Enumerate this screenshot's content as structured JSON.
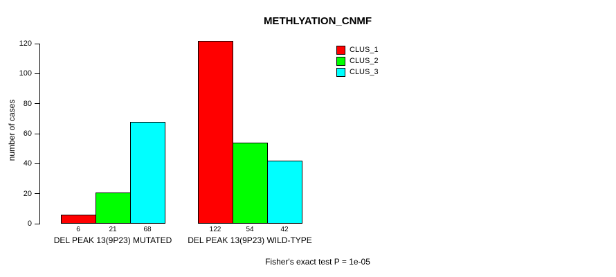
{
  "chart_data": {
    "type": "bar",
    "title": "METHLYATION_CNMF",
    "ylabel": "number of cases",
    "xlabel": "",
    "categories": [
      "DEL PEAK 13(9P23) MUTATED",
      "DEL PEAK 13(9P23) WILD-TYPE"
    ],
    "series": [
      {
        "name": "CLUS_1",
        "color": "#FF0000",
        "values": [
          6,
          122
        ]
      },
      {
        "name": "CLUS_2",
        "color": "#00FF00",
        "values": [
          21,
          54
        ]
      },
      {
        "name": "CLUS_3",
        "color": "#00FFFF",
        "values": [
          68,
          42
        ]
      }
    ],
    "ylim": [
      0,
      120
    ],
    "yticks": [
      0,
      20,
      40,
      60,
      80,
      100,
      120
    ],
    "grid": false,
    "legend_position": "top-right",
    "annotation": "Fisher's exact test P = 1e-05"
  },
  "colors": {
    "background": "#FFFFFF",
    "axis": "#000000",
    "text": "#000000",
    "bar_border": "#000000"
  }
}
